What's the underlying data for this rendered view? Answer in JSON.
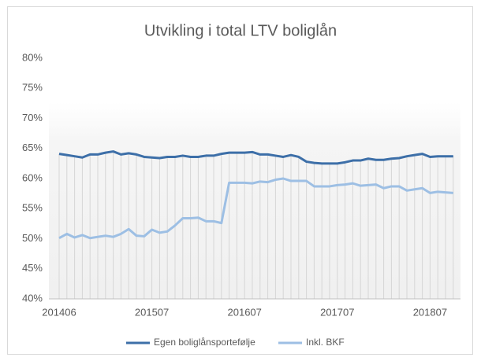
{
  "chart_data": {
    "type": "line",
    "title": "Utvikling i total LTV boliglån",
    "categories": [
      "201406",
      null,
      null,
      null,
      null,
      null,
      null,
      null,
      null,
      null,
      null,
      null,
      "201507",
      null,
      null,
      null,
      null,
      null,
      null,
      null,
      null,
      null,
      null,
      null,
      "201607",
      null,
      null,
      null,
      null,
      null,
      null,
      null,
      null,
      null,
      null,
      null,
      "201707",
      null,
      null,
      null,
      null,
      null,
      null,
      null,
      null,
      null,
      null,
      null,
      "201807",
      null,
      null,
      null
    ],
    "series": [
      {
        "name": "Egen boliglånsportefølje",
        "color": "#3d6fa8",
        "values": [
          64.1,
          63.9,
          63.7,
          63.5,
          64.0,
          64.0,
          64.3,
          64.5,
          64.0,
          64.2,
          64.0,
          63.6,
          63.5,
          63.4,
          63.6,
          63.6,
          63.8,
          63.6,
          63.6,
          63.8,
          63.8,
          64.1,
          64.3,
          64.3,
          64.3,
          64.4,
          64.0,
          64.0,
          63.8,
          63.6,
          63.9,
          63.6,
          62.8,
          62.6,
          62.5,
          62.5,
          62.5,
          62.7,
          63.0,
          63.0,
          63.3,
          63.1,
          63.1,
          63.3,
          63.4,
          63.7,
          63.9,
          64.1,
          63.6,
          63.7,
          63.7,
          63.7
        ]
      },
      {
        "name": "Inkl. BKF",
        "color": "#9dbfe4",
        "values": [
          50.1,
          50.8,
          50.2,
          50.6,
          50.1,
          50.3,
          50.5,
          50.3,
          50.8,
          51.6,
          50.5,
          50.4,
          51.5,
          51.0,
          51.2,
          52.2,
          53.4,
          53.4,
          53.5,
          52.9,
          52.9,
          52.6,
          59.3,
          59.3,
          59.3,
          59.2,
          59.5,
          59.4,
          59.8,
          60.0,
          59.6,
          59.6,
          59.6,
          58.7,
          58.7,
          58.7,
          58.9,
          59.0,
          59.2,
          58.8,
          58.9,
          59.0,
          58.4,
          58.7,
          58.7,
          58.0,
          58.2,
          58.4,
          57.6,
          57.8,
          57.7,
          57.6
        ]
      }
    ],
    "ylim": [
      40,
      80
    ],
    "yticks": [
      {
        "value": 40,
        "label": "40%"
      },
      {
        "value": 45,
        "label": "45%"
      },
      {
        "value": 50,
        "label": "50%"
      },
      {
        "value": 55,
        "label": "55%"
      },
      {
        "value": 60,
        "label": "60%"
      },
      {
        "value": 65,
        "label": "65%"
      },
      {
        "value": 70,
        "label": "70%"
      },
      {
        "value": 75,
        "label": "75%"
      },
      {
        "value": 80,
        "label": "80%"
      }
    ],
    "legend": "bottom"
  }
}
